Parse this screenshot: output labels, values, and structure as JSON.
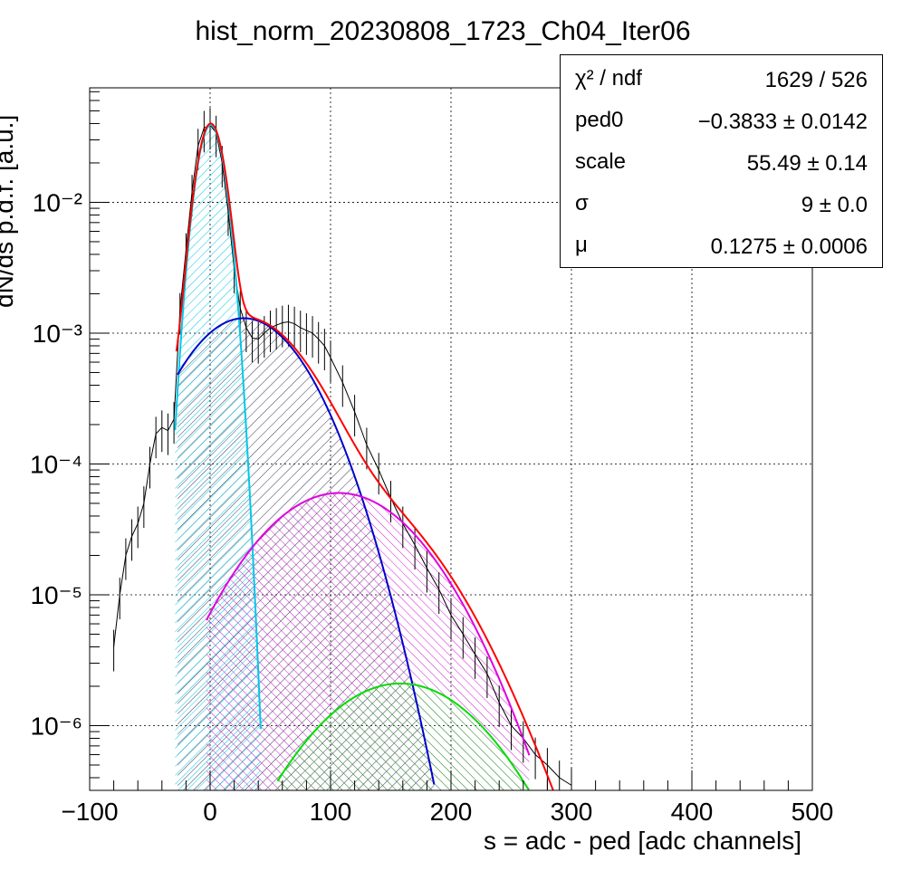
{
  "title": "hist_norm_20230808_1723_Ch04_Iter06",
  "stats": [
    {
      "label": "χ² / ndf",
      "value": "1629 / 526"
    },
    {
      "label": "ped0",
      "value": "−0.3833 ± 0.0142"
    },
    {
      "label": "scale",
      "value": "55.49 ± 0.14"
    },
    {
      "label": "σ",
      "value": "9 ± 0.0"
    },
    {
      "label": "μ",
      "value": "0.1275 ± 0.0006"
    }
  ],
  "chart_data": {
    "type": "line",
    "title": "hist_norm_20230808_1723_Ch04_Iter06",
    "xlabel": "s = adc - ped [adc channels]",
    "ylabel": "dN/ds p.d.f. [a.u.]",
    "xlim": [
      -100,
      500
    ],
    "ylim": [
      3.2e-07,
      0.075
    ],
    "y_scale": "log",
    "grid": true,
    "x_ticks": [
      "−100",
      "0",
      "100",
      "200",
      "300",
      "400",
      "500"
    ],
    "y_ticks": [
      "10⁻⁶",
      "10⁻⁵",
      "10⁻⁴",
      "10⁻³",
      "10⁻²"
    ],
    "colors": {
      "total": "#ff0000",
      "pedestal": "#00c8e8",
      "one_pe": "#0000cc",
      "two_pe": "#e000e0",
      "three_pe": "#00dd00",
      "data": "#000000"
    },
    "series": [
      {
        "id": "data",
        "kind": "histogram",
        "x": [
          -80,
          -75,
          -70,
          -65,
          -60,
          -55,
          -50,
          -45,
          -40,
          -35,
          -30,
          -25,
          -20,
          -15,
          -10,
          -5,
          0,
          5,
          10,
          15,
          20,
          25,
          30,
          35,
          40,
          45,
          50,
          55,
          60,
          65,
          70,
          75,
          80,
          85,
          90,
          95,
          100,
          110,
          120,
          130,
          140,
          150,
          160,
          170,
          180,
          190,
          200,
          210,
          220,
          230,
          240,
          250,
          260,
          270,
          280,
          290,
          300
        ],
        "y": [
          4e-06,
          1e-05,
          2e-05,
          2.8e-05,
          3.5e-05,
          5e-05,
          0.0001,
          0.00017,
          0.00019,
          0.00018,
          0.00022,
          0.0015,
          0.0043,
          0.012,
          0.027,
          0.037,
          0.039,
          0.034,
          0.02,
          0.0085,
          0.0031,
          0.00155,
          0.0011,
          0.00092,
          0.0009,
          0.001,
          0.0011,
          0.00115,
          0.0012,
          0.00122,
          0.00118,
          0.0011,
          0.00105,
          0.001,
          0.0009,
          0.0008,
          0.00065,
          0.00042,
          0.00025,
          0.00014,
          9e-05,
          5.5e-05,
          3.5e-05,
          2.4e-05,
          1.6e-05,
          1.1e-05,
          7e-06,
          5e-06,
          3.5e-06,
          2.5e-06,
          1.5e-06,
          1e-06,
          8e-07,
          6e-07,
          5e-07,
          4e-07,
          3.5e-07
        ]
      },
      {
        "id": "pedestal",
        "kind": "gaussian",
        "peak": 0.039,
        "mean": 0.5,
        "sigma": 9,
        "xrange": [
          -29,
          42
        ]
      },
      {
        "id": "one_pe",
        "kind": "gaussian",
        "peak": 0.0013,
        "mean": 28,
        "sigma": 39,
        "xrange": [
          -27,
          186
        ]
      },
      {
        "id": "two_pe",
        "kind": "gaussian",
        "peak": 6e-05,
        "mean": 107,
        "sigma": 52,
        "xrange": [
          -3,
          265
        ]
      },
      {
        "id": "three_pe",
        "kind": "gaussian",
        "peak": 2.1e-06,
        "mean": 158,
        "sigma": 55,
        "xrange": [
          56,
          282
        ]
      },
      {
        "id": "total",
        "kind": "sum",
        "xrange": [
          -28,
          300
        ]
      }
    ]
  }
}
